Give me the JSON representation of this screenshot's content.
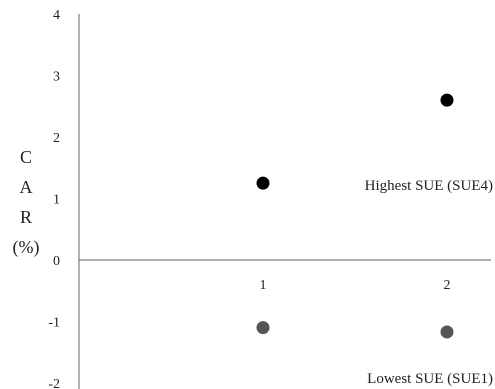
{
  "chart_data": {
    "type": "scatter",
    "title": "",
    "ylabel_lines": [
      "C",
      "A",
      "R",
      "(%)"
    ],
    "ylim": [
      -2,
      4
    ],
    "yticks": [
      4,
      3,
      2,
      1,
      0,
      -1,
      -2
    ],
    "xlim": [
      0,
      2.35
    ],
    "xticks": [
      "1",
      "2"
    ],
    "series": [
      {
        "name": "Highest SUE (SUE4)",
        "color": "#000000",
        "points": [
          {
            "x": 1,
            "y": 1.25
          },
          {
            "x": 2,
            "y": 2.6
          }
        ]
      },
      {
        "name": "Lowest SUE (SUE1)",
        "color": "#555555",
        "points": [
          {
            "x": 1,
            "y": -1.1
          },
          {
            "x": 2,
            "y": -1.17
          }
        ]
      }
    ]
  }
}
